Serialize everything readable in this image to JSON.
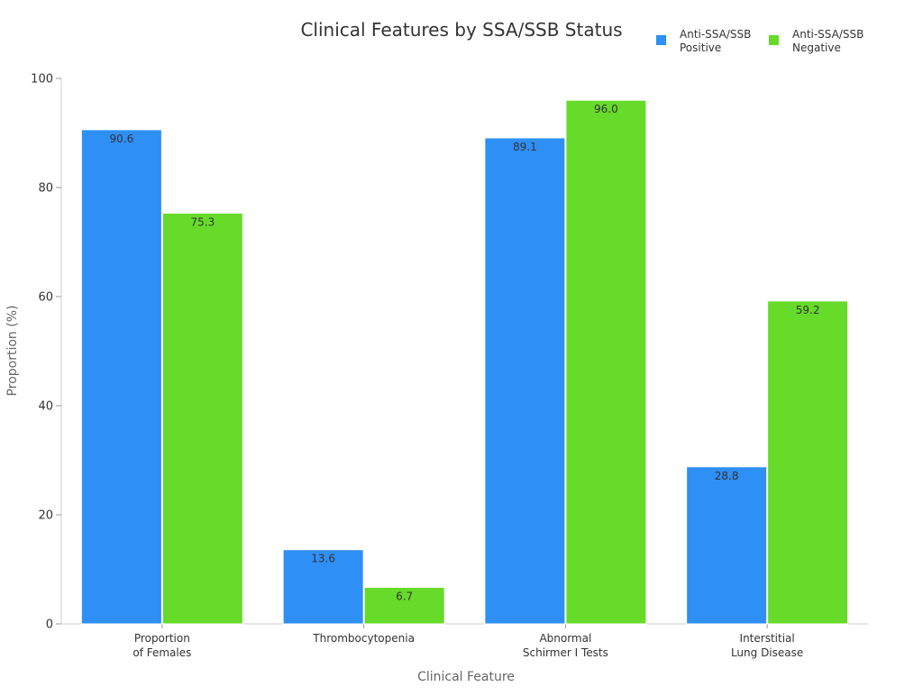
{
  "chart_data": {
    "type": "bar",
    "title": "Clinical Features by SSA/SSB Status",
    "xlabel": "Clinical Feature",
    "ylabel": "Proportion (%)",
    "ylim": [
      0,
      100
    ],
    "yticks": [
      0,
      20,
      40,
      60,
      80,
      100
    ],
    "grid": false,
    "legend_position": "top-right",
    "categories": [
      [
        "Proportion",
        "of Females"
      ],
      [
        "Thrombocytopenia"
      ],
      [
        "Abnormal",
        "Schirmer I Tests"
      ],
      [
        "Interstitial",
        "Lung Disease"
      ]
    ],
    "series": [
      {
        "name": [
          "Anti-SSA/SSB",
          "Positive"
        ],
        "color": "#2E8FF5",
        "values": [
          90.6,
          13.6,
          89.1,
          28.8
        ]
      },
      {
        "name": [
          "Anti-SSA/SSB",
          "Negative"
        ],
        "color": "#66DB29",
        "values": [
          75.3,
          6.7,
          96.0,
          59.2
        ]
      }
    ]
  }
}
